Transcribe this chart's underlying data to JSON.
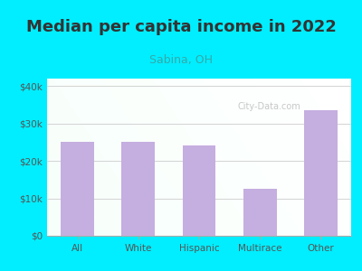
{
  "title": "Median per capita income in 2022",
  "subtitle": "Sabina, OH",
  "categories": [
    "All",
    "White",
    "Hispanic",
    "Multirace",
    "Other"
  ],
  "values": [
    25000,
    25200,
    24200,
    12500,
    33500
  ],
  "bar_color": "#c5aee0",
  "yticks": [
    0,
    10000,
    20000,
    30000,
    40000
  ],
  "ytick_labels": [
    "$0",
    "$10k",
    "$20k",
    "$30k",
    "$40k"
  ],
  "ylim": [
    0,
    42000
  ],
  "background_outer": "#00eeff",
  "title_color": "#333333",
  "subtitle_color": "#33aaaa",
  "tick_color": "#555555",
  "watermark": "City-Data.com",
  "title_fontsize": 13,
  "subtitle_fontsize": 9
}
